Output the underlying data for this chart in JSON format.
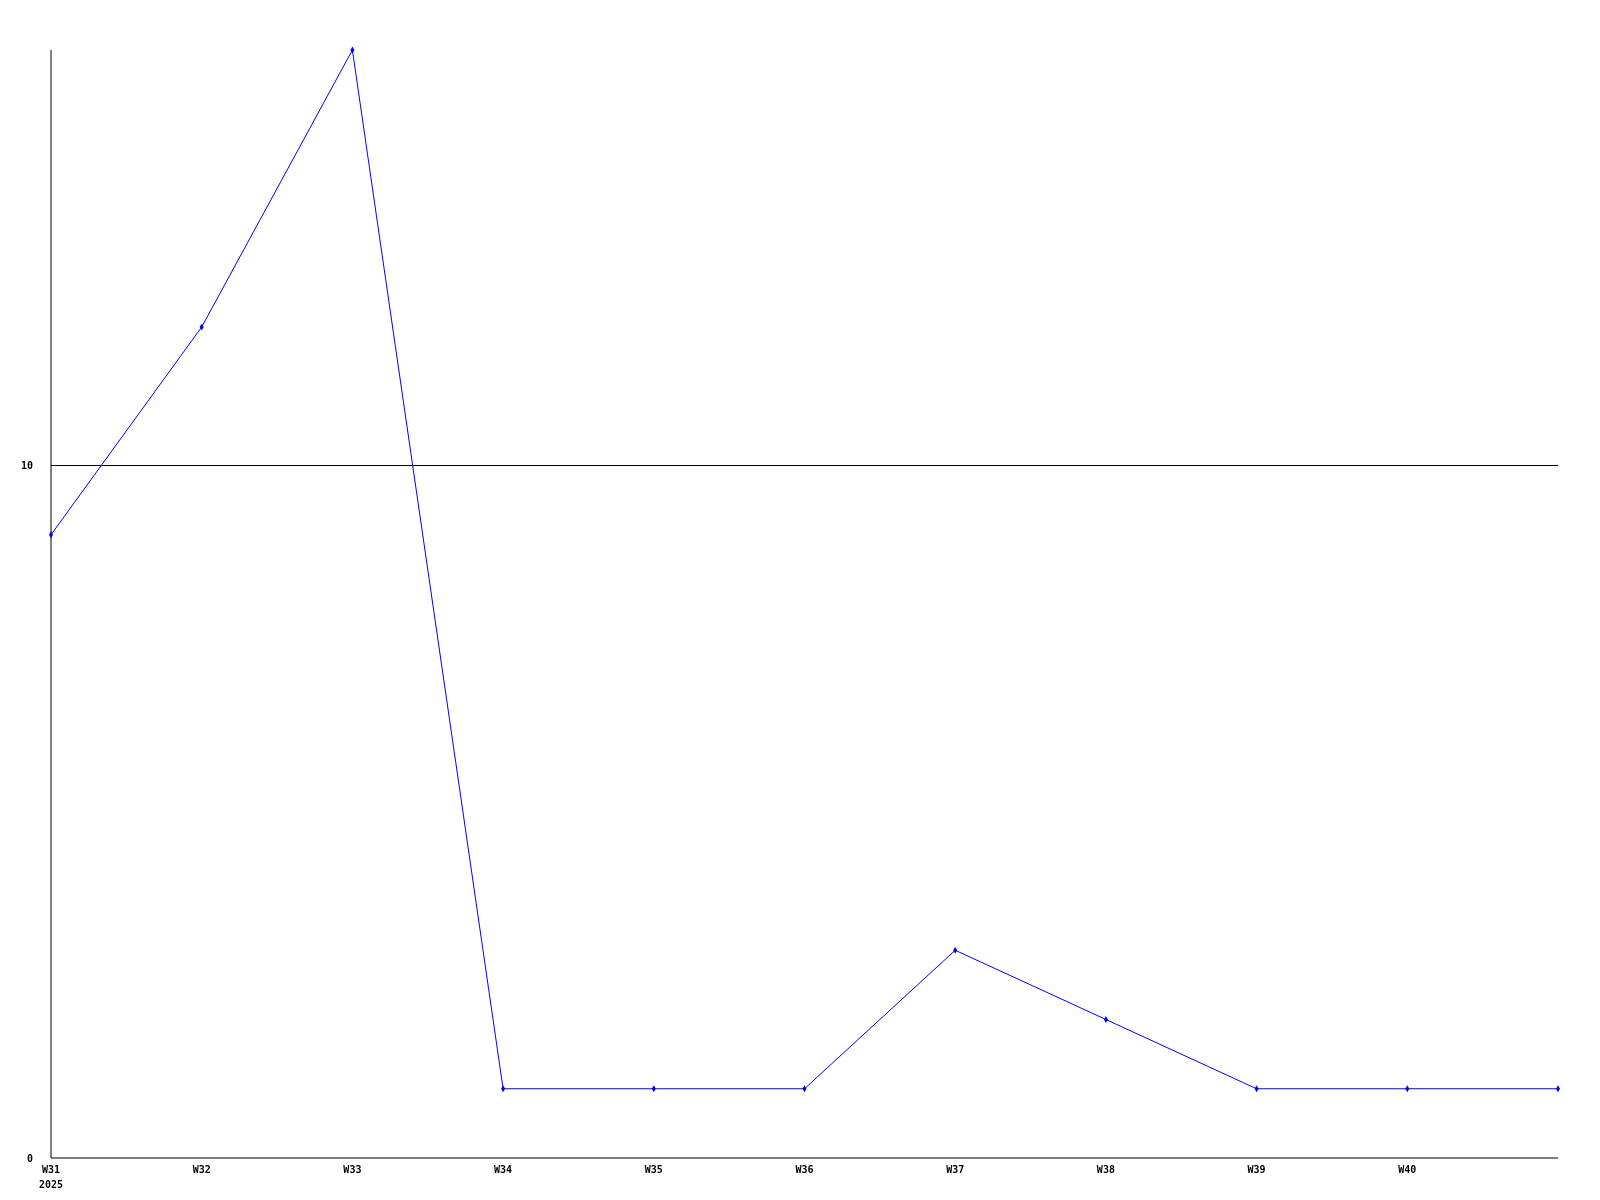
{
  "chart_data": {
    "type": "line",
    "categories": [
      "W31",
      "W32",
      "W33",
      "W34",
      "W35",
      "W36",
      "W37",
      "W38",
      "W39",
      "W40",
      null
    ],
    "series": [
      {
        "color": "#0000ff",
        "values": [
          9,
          12,
          16,
          1,
          1,
          1,
          3,
          2,
          1,
          1,
          1
        ]
      }
    ],
    "ylim": [
      0,
      16
    ],
    "yticks": [
      0,
      10
    ],
    "grid": "y",
    "marker": "diamond",
    "line_style": "solid",
    "annotations": [
      "2025"
    ]
  }
}
